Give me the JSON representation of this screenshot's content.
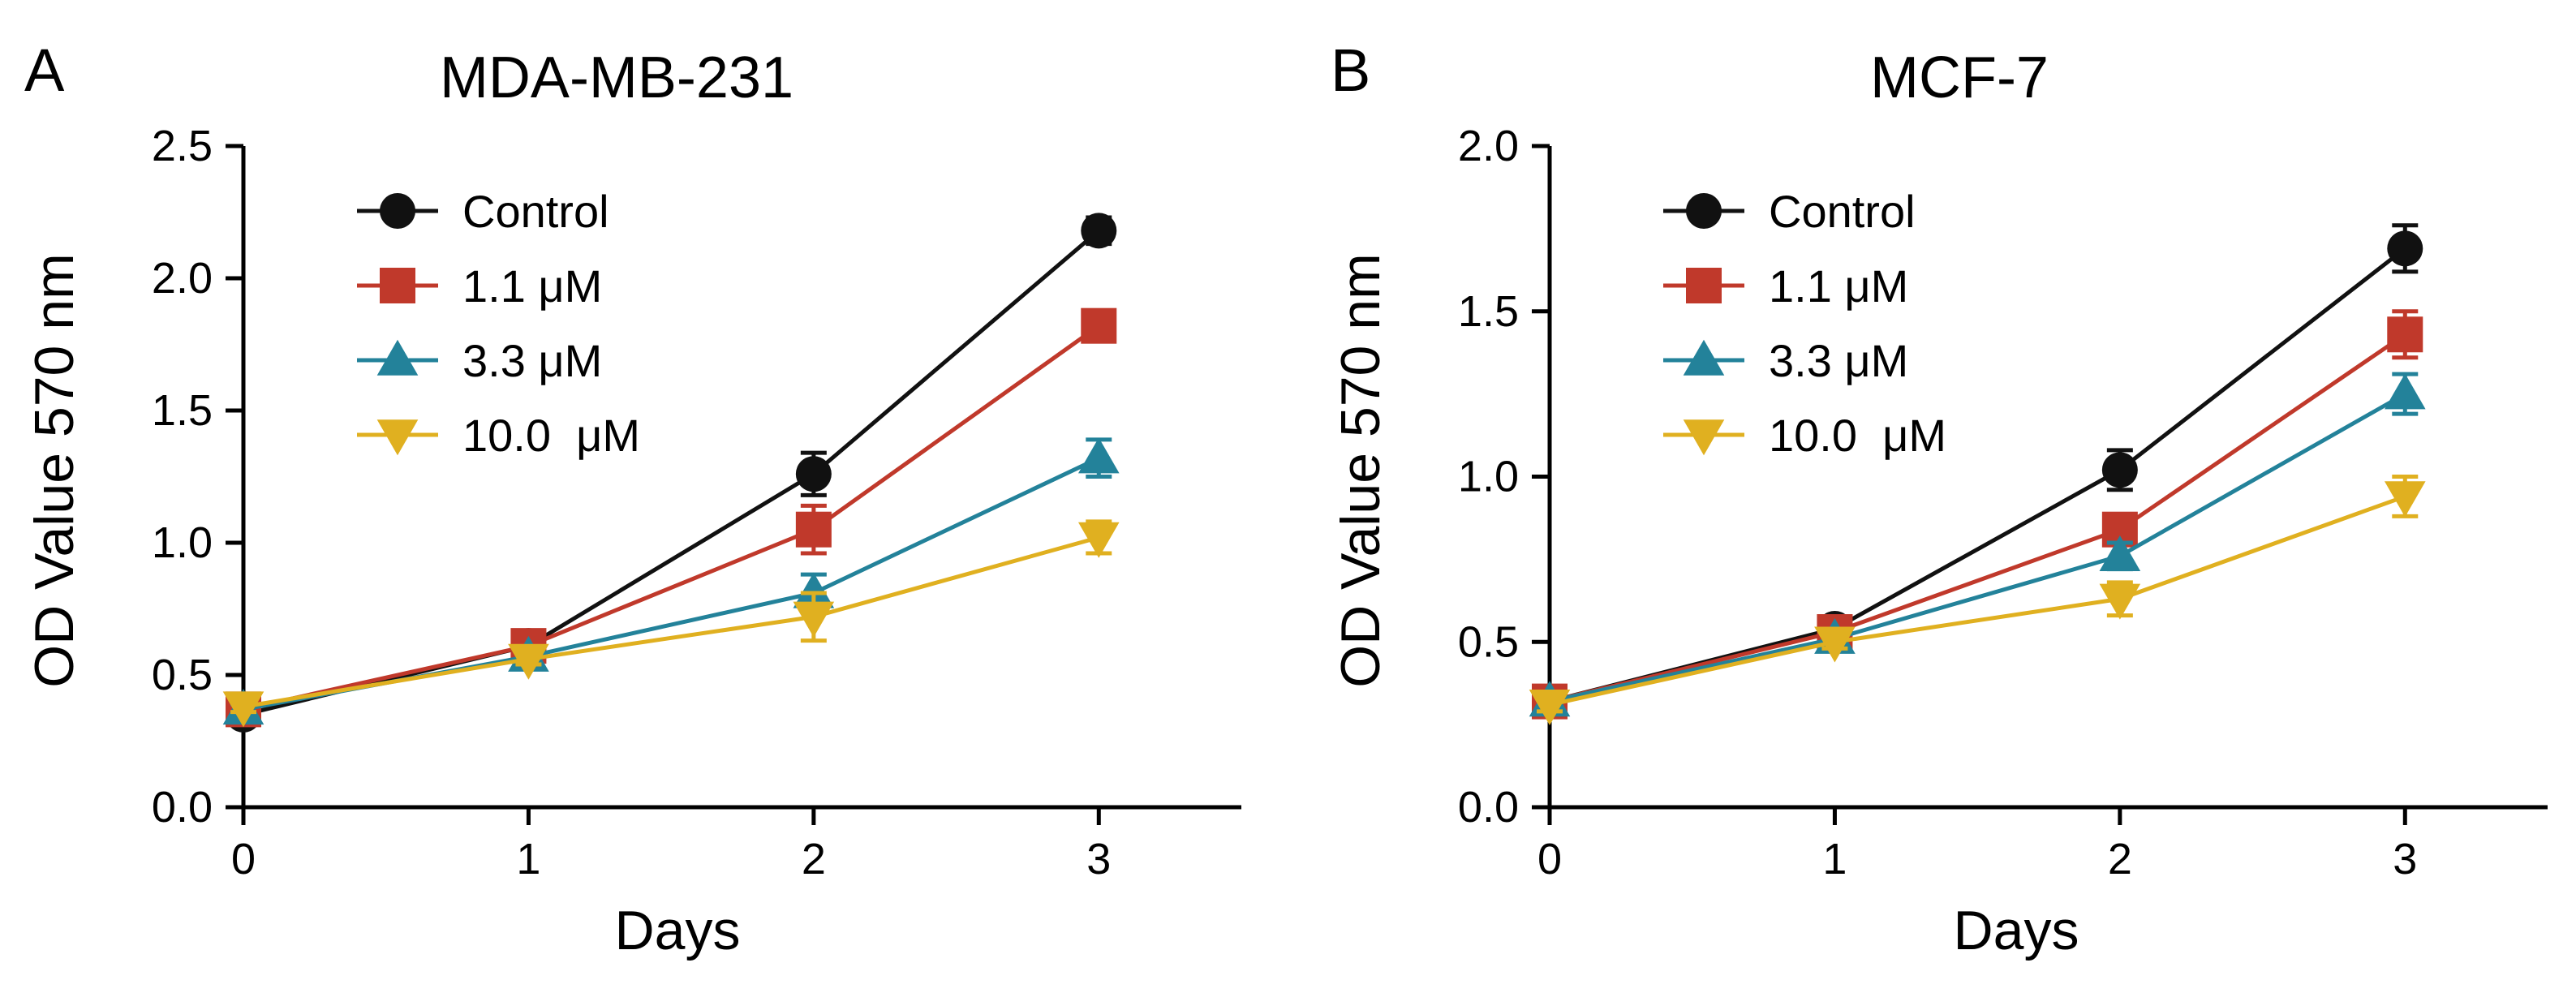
{
  "chart_data": [
    {
      "type": "line",
      "panel_label": "A",
      "title": "MDA-MB-231",
      "xlabel": "Days",
      "ylabel": "OD Value 570 nm",
      "xlim": [
        0,
        3.5
      ],
      "ylim": [
        0,
        2.5
      ],
      "x": [
        0,
        1,
        2,
        3
      ],
      "x_ticks": [
        "0",
        "1",
        "2",
        "3"
      ],
      "y_ticks": [
        "0.0",
        "0.5",
        "1.0",
        "1.5",
        "2.0",
        "2.5"
      ],
      "legend_position": "top-left",
      "grid": false,
      "series": [
        {
          "name": "Control",
          "color": "#111111",
          "marker": "circle",
          "values": [
            0.35,
            0.61,
            1.26,
            2.18
          ],
          "errors": [
            0.02,
            0.02,
            0.08,
            0.05
          ]
        },
        {
          "name": "1.1 μM",
          "color": "#c0392b",
          "marker": "square",
          "values": [
            0.37,
            0.61,
            1.05,
            1.82
          ],
          "errors": [
            0.02,
            0.02,
            0.09,
            0.05
          ]
        },
        {
          "name": "3.3 μM",
          "color": "#23829a",
          "marker": "triangle-up",
          "values": [
            0.37,
            0.57,
            0.81,
            1.32
          ],
          "errors": [
            0.02,
            0.02,
            0.07,
            0.07
          ]
        },
        {
          "name": "10.0  μM",
          "color": "#e0b020",
          "marker": "triangle-down",
          "values": [
            0.38,
            0.56,
            0.72,
            1.02
          ],
          "errors": [
            0.02,
            0.02,
            0.09,
            0.06
          ]
        }
      ]
    },
    {
      "type": "line",
      "panel_label": "B",
      "title": "MCF-7",
      "xlabel": "Days",
      "ylabel": "OD Value 570 nm",
      "xlim": [
        0,
        3.5
      ],
      "ylim": [
        0,
        2.0
      ],
      "x": [
        0,
        1,
        2,
        3
      ],
      "x_ticks": [
        "0",
        "1",
        "2",
        "3"
      ],
      "y_ticks": [
        "0.0",
        "0.5",
        "1.0",
        "1.5",
        "2.0"
      ],
      "legend_position": "top-left",
      "grid": false,
      "series": [
        {
          "name": "Control",
          "color": "#111111",
          "marker": "circle",
          "values": [
            0.32,
            0.54,
            1.02,
            1.69
          ],
          "errors": [
            0.02,
            0.02,
            0.06,
            0.07
          ]
        },
        {
          "name": "1.1 μM",
          "color": "#c0392b",
          "marker": "square",
          "values": [
            0.32,
            0.53,
            0.84,
            1.43
          ],
          "errors": [
            0.02,
            0.02,
            0.04,
            0.07
          ]
        },
        {
          "name": "3.3 μM",
          "color": "#23829a",
          "marker": "triangle-up",
          "values": [
            0.32,
            0.51,
            0.76,
            1.25
          ],
          "errors": [
            0.02,
            0.02,
            0.04,
            0.06
          ]
        },
        {
          "name": "10.0  μM",
          "color": "#e0b020",
          "marker": "triangle-down",
          "values": [
            0.31,
            0.5,
            0.63,
            0.94
          ],
          "errors": [
            0.02,
            0.02,
            0.05,
            0.06
          ]
        }
      ]
    }
  ]
}
